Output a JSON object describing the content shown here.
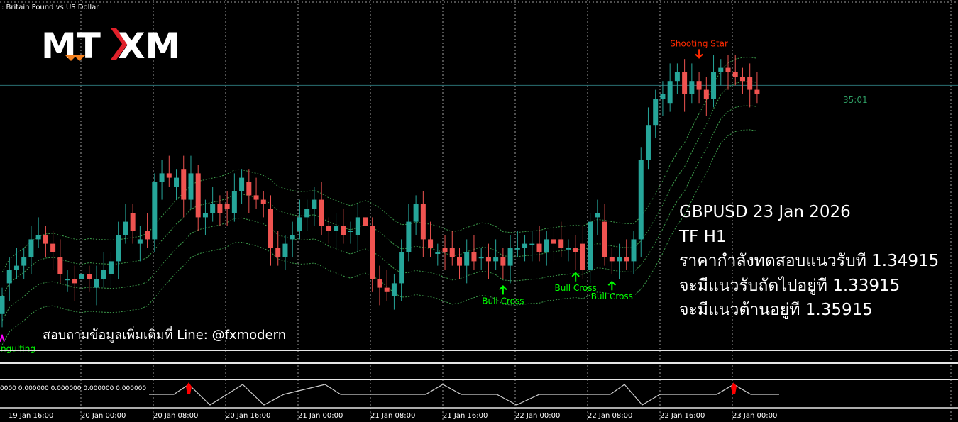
{
  "window": {
    "symbol_title": ": Britain Pound vs US Dollar"
  },
  "brand": {
    "logo_left": "MT",
    "logo_right": "XM",
    "colors": {
      "white": "#ffffff",
      "orange": "#f58220",
      "red": "#e0202a"
    }
  },
  "colors": {
    "background": "#000000",
    "bull": "#26a69a",
    "bear": "#ef5350",
    "grid": "#a0a0a0",
    "price_line": "#2a6f73",
    "band": "#3c9a4a",
    "bull_cross": "#00ff00",
    "shooting_star": "#ff2a00",
    "engulfing_marker": "#ff00ff",
    "indicator_line": "#cfcfcf",
    "indicator_spike": "#ff0000"
  },
  "chart_data": {
    "type": "candlestick",
    "symbol": "GBPUSD",
    "timeframe": "H1",
    "x": [
      "19 Jan 16:00",
      "20 Jan 00:00",
      "20 Jan 08:00",
      "20 Jan 16:00",
      "21 Jan 00:00",
      "21 Jan 08:00",
      "21 Jan 16:00",
      "22 Jan 00:00",
      "22 Jan 08:00",
      "22 Jan 16:00",
      "23 Jan 00:00"
    ],
    "candles": [
      {
        "o": 1.3411,
        "c": 1.3415
      },
      {
        "o": 1.3418,
        "c": 1.3421
      },
      {
        "o": 1.3421,
        "c": 1.3422
      },
      {
        "o": 1.3422,
        "c": 1.3424
      },
      {
        "o": 1.3424,
        "c": 1.3428
      },
      {
        "o": 1.3428,
        "c": 1.3429
      },
      {
        "o": 1.3429,
        "c": 1.3427
      },
      {
        "o": 1.3427,
        "c": 1.3425
      },
      {
        "o": 1.3424,
        "c": 1.342
      },
      {
        "o": 1.3419,
        "c": 1.3419
      },
      {
        "o": 1.3419,
        "c": 1.3418
      },
      {
        "o": 1.3419,
        "c": 1.342
      },
      {
        "o": 1.342,
        "c": 1.3419
      },
      {
        "o": 1.3417,
        "c": 1.3419
      },
      {
        "o": 1.3419,
        "c": 1.3421
      },
      {
        "o": 1.342,
        "c": 1.3423
      },
      {
        "o": 1.3423,
        "c": 1.3429
      },
      {
        "o": 1.3429,
        "c": 1.3432
      },
      {
        "o": 1.3434,
        "c": 1.343
      },
      {
        "o": 1.3427,
        "c": 1.3428
      },
      {
        "o": 1.343,
        "c": 1.3428
      },
      {
        "o": 1.3428,
        "c": 1.3441
      },
      {
        "o": 1.3441,
        "c": 1.3443
      },
      {
        "o": 1.3443,
        "c": 1.3442
      },
      {
        "o": 1.344,
        "c": 1.3442
      },
      {
        "o": 1.3444,
        "c": 1.3437
      },
      {
        "o": 1.3437,
        "c": 1.3443
      },
      {
        "o": 1.3443,
        "c": 1.3433
      },
      {
        "o": 1.3433,
        "c": 1.3434
      },
      {
        "o": 1.3434,
        "c": 1.3436
      },
      {
        "o": 1.3436,
        "c": 1.3434
      },
      {
        "o": 1.3436,
        "c": 1.3435
      },
      {
        "o": 1.3434,
        "c": 1.3439
      },
      {
        "o": 1.3439,
        "c": 1.3442
      },
      {
        "o": 1.3441,
        "c": 1.3438
      },
      {
        "o": 1.3438,
        "c": 1.3437
      },
      {
        "o": 1.3437,
        "c": 1.3436
      },
      {
        "o": 1.3435,
        "c": 1.3426
      },
      {
        "o": 1.3426,
        "c": 1.3424
      },
      {
        "o": 1.3424,
        "c": 1.3427
      },
      {
        "o": 1.3428,
        "c": 1.3429
      },
      {
        "o": 1.343,
        "c": 1.3433
      },
      {
        "o": 1.3433,
        "c": 1.3435
      },
      {
        "o": 1.3435,
        "c": 1.3437
      },
      {
        "o": 1.3437,
        "c": 1.3431
      },
      {
        "o": 1.3431,
        "c": 1.343
      },
      {
        "o": 1.343,
        "c": 1.3431
      },
      {
        "o": 1.3431,
        "c": 1.3429
      },
      {
        "o": 1.343,
        "c": 1.343
      },
      {
        "o": 1.3429,
        "c": 1.3433
      },
      {
        "o": 1.3433,
        "c": 1.3431
      },
      {
        "o": 1.3431,
        "c": 1.3419
      },
      {
        "o": 1.3419,
        "c": 1.3417
      },
      {
        "o": 1.3417,
        "c": 1.3416
      },
      {
        "o": 1.3415,
        "c": 1.3418
      },
      {
        "o": 1.3418,
        "c": 1.3425
      },
      {
        "o": 1.3425,
        "c": 1.3432
      },
      {
        "o": 1.3432,
        "c": 1.3436
      },
      {
        "o": 1.3436,
        "c": 1.3428
      },
      {
        "o": 1.3428,
        "c": 1.3426
      },
      {
        "o": 1.3425,
        "c": 1.3425
      },
      {
        "o": 1.3426,
        "c": 1.3425
      },
      {
        "o": 1.3426,
        "c": 1.3424
      },
      {
        "o": 1.3424,
        "c": 1.3422
      },
      {
        "o": 1.3422,
        "c": 1.3425
      },
      {
        "o": 1.3425,
        "c": 1.3423
      },
      {
        "o": 1.3424,
        "c": 1.3424
      },
      {
        "o": 1.3424,
        "c": 1.3423
      },
      {
        "o": 1.3423,
        "c": 1.3424
      },
      {
        "o": 1.3424,
        "c": 1.3422
      },
      {
        "o": 1.3422,
        "c": 1.3426
      },
      {
        "o": 1.3426,
        "c": 1.3426
      },
      {
        "o": 1.3426,
        "c": 1.3427
      },
      {
        "o": 1.3427,
        "c": 1.3427
      },
      {
        "o": 1.3427,
        "c": 1.3425
      },
      {
        "o": 1.3425,
        "c": 1.3428
      },
      {
        "o": 1.3428,
        "c": 1.3427
      },
      {
        "o": 1.3428,
        "c": 1.3426
      },
      {
        "o": 1.3426,
        "c": 1.3426
      },
      {
        "o": 1.3426,
        "c": 1.3425
      },
      {
        "o": 1.3427,
        "c": 1.3421
      },
      {
        "o": 1.3421,
        "c": 1.3432
      },
      {
        "o": 1.3433,
        "c": 1.3434
      },
      {
        "o": 1.3432,
        "c": 1.3424
      },
      {
        "o": 1.3424,
        "c": 1.3423
      },
      {
        "o": 1.3423,
        "c": 1.3424
      },
      {
        "o": 1.3424,
        "c": 1.3423
      },
      {
        "o": 1.3423,
        "c": 1.3428
      },
      {
        "o": 1.3428,
        "c": 1.3446
      },
      {
        "o": 1.3446,
        "c": 1.3454
      },
      {
        "o": 1.3454,
        "c": 1.346
      },
      {
        "o": 1.346,
        "c": 1.3461
      },
      {
        "o": 1.3459,
        "c": 1.3464
      },
      {
        "o": 1.3464,
        "c": 1.3466
      },
      {
        "o": 1.3466,
        "c": 1.3461
      },
      {
        "o": 1.3461,
        "c": 1.3464
      },
      {
        "o": 1.3464,
        "c": 1.3462
      },
      {
        "o": 1.3462,
        "c": 1.346
      },
      {
        "o": 1.346,
        "c": 1.3466
      },
      {
        "o": 1.3466,
        "c": 1.3467
      },
      {
        "o": 1.3467,
        "c": 1.3466
      },
      {
        "o": 1.3466,
        "c": 1.3465
      },
      {
        "o": 1.3465,
        "c": 1.3464
      },
      {
        "o": 1.3465,
        "c": 1.3462
      },
      {
        "o": 1.3462,
        "c": 1.3461
      }
    ],
    "last_price_label": "35:01",
    "annotations": [
      {
        "label": "ngulfing",
        "index": 0,
        "kind": "engulfing"
      },
      {
        "label": "Bull Cross",
        "index": 69,
        "kind": "bull"
      },
      {
        "label": "Bull Cross",
        "index": 79,
        "kind": "bull"
      },
      {
        "label": "Bull Cross",
        "index": 84,
        "kind": "bull"
      },
      {
        "label": "Shooting Star",
        "index": 96,
        "kind": "bear"
      }
    ],
    "indicator": {
      "values_text": "0000 0.000000 0.000000 0.000000 0.000000",
      "spike_indices": [
        19,
        84
      ]
    }
  },
  "info": {
    "line1": "GBPUSD 23 Jan 2026",
    "line2": "TF H1",
    "line3": "ราคากำลังทดสอบแนวรับที 1.34915",
    "line4": "จะมีแนวรับถัดไปอยู่ที 1.33915",
    "line5": "จะมีแนวต้านอยู่ที 1.35915"
  },
  "contact": "สอบถามข้อมูลเพิ่มเติมที่ Line: @fxmodern"
}
